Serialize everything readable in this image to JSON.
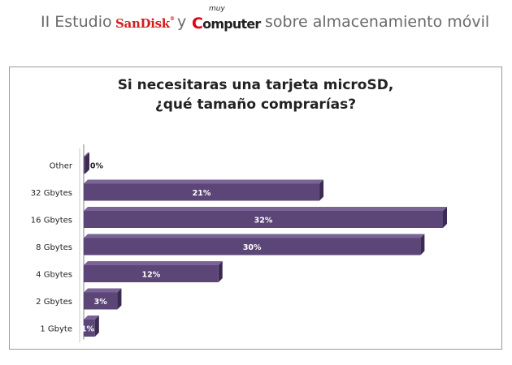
{
  "header": {
    "prefix": "II Estudio",
    "conjunction": "y",
    "suffix": "sobre almacenamiento móvil",
    "sandisk_logo_text": "SanDisk",
    "muycomputer_logo_top": "muy",
    "muycomputer_logo_main": "Computer"
  },
  "colors": {
    "bar_front": "#5c4677",
    "bar_top": "#7a6397",
    "bar_side": "#3b2a52",
    "label_text": "#ffffff",
    "axis": "#808080"
  },
  "chart_data": {
    "type": "bar",
    "orientation": "horizontal",
    "title": "Si necesitaras una tarjeta microSD, ¿qué tamaño comprarías?",
    "categories": [
      "Other",
      "32 Gbytes",
      "16 Gbytes",
      "8 Gbytes",
      "4 Gbytes",
      "2 Gbytes",
      "1 Gbyte"
    ],
    "values": [
      0,
      21,
      32,
      30,
      12,
      3,
      1
    ],
    "value_labels": [
      "0%",
      "21%",
      "32%",
      "30%",
      "12%",
      "3%",
      "1%"
    ],
    "unit": "%",
    "xlim": [
      0,
      32
    ],
    "xlabel": "",
    "ylabel": "",
    "legend": "none",
    "grid": false,
    "style": "3d"
  }
}
